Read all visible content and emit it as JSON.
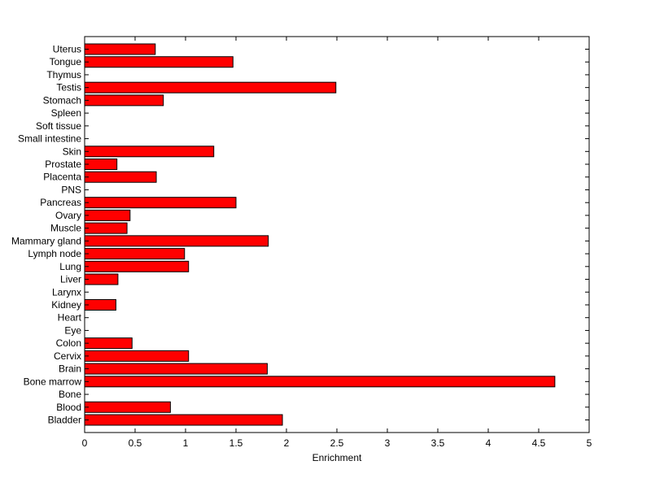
{
  "chart_data": {
    "type": "bar",
    "orientation": "horizontal",
    "title": "",
    "xlabel": "Enrichment",
    "ylabel": "",
    "xlim": [
      0,
      5
    ],
    "xticks": [
      "0",
      "0.5",
      "1",
      "1.5",
      "2",
      "2.5",
      "3",
      "3.5",
      "4",
      "4.5",
      "5"
    ],
    "grid": false,
    "bar_color": "#ff0000",
    "categories": [
      "Bladder",
      "Blood",
      "Bone",
      "Bone marrow",
      "Brain",
      "Cervix",
      "Colon",
      "Eye",
      "Heart",
      "Kidney",
      "Larynx",
      "Liver",
      "Lung",
      "Lymph node",
      "Mammary gland",
      "Muscle",
      "Ovary",
      "Pancreas",
      "PNS",
      "Placenta",
      "Prostate",
      "Skin",
      "Small intestine",
      "Soft tissue",
      "Spleen",
      "Stomach",
      "Testis",
      "Thymus",
      "Tongue",
      "Uterus"
    ],
    "values": [
      1.96,
      0.85,
      0,
      4.66,
      1.81,
      1.03,
      0.47,
      0,
      0,
      0.31,
      0,
      0.33,
      1.03,
      0.99,
      1.82,
      0.42,
      0.45,
      1.5,
      0,
      0.71,
      0.32,
      1.28,
      0,
      0,
      0,
      0.78,
      2.49,
      0,
      1.47,
      0.7
    ]
  }
}
